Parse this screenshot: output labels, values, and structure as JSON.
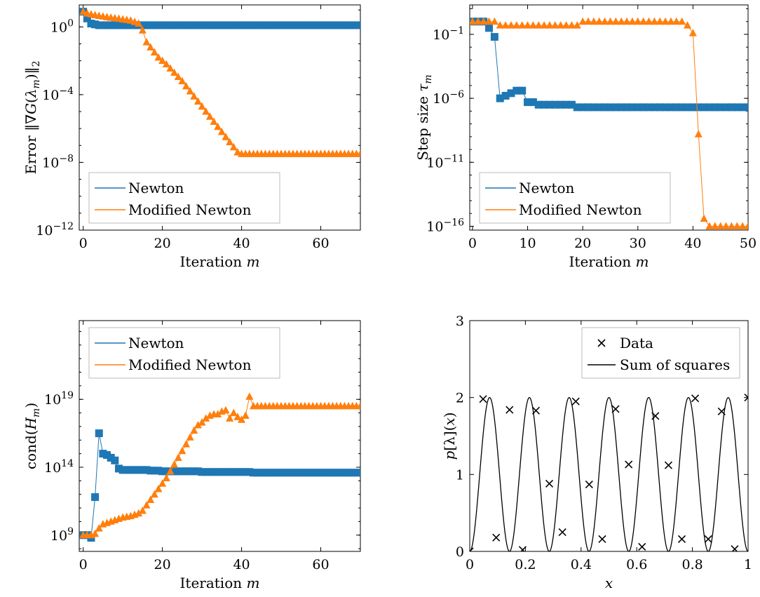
{
  "colors": {
    "newton": "#1f77b4",
    "modified": "#ff7f0e",
    "data": "#000000"
  },
  "chart_data": [
    {
      "id": "error",
      "type": "line",
      "xlabel": "Iteration m",
      "ylabel": "Error ||∇G(λm)||2",
      "xlim": [
        -1,
        70
      ],
      "ylim_log10": [
        -12,
        1.3
      ],
      "yscale": "log",
      "xticks": [
        0,
        20,
        40,
        60
      ],
      "yticks": [
        {
          "exp": -12,
          "label": "10⁻¹²"
        },
        {
          "exp": -8,
          "label": "10⁻⁸"
        },
        {
          "exp": -4,
          "label": "10⁻⁴"
        },
        {
          "exp": 0,
          "label": "10⁰"
        }
      ],
      "legend_position": "bottom-left",
      "series": [
        {
          "name": "Newton",
          "marker": "square",
          "x_start": 0,
          "log10_values": [
            0.9,
            0.5,
            0.2,
            0.15,
            0.1,
            0.1,
            0.1,
            0.1,
            0.1,
            0.1,
            0.1,
            0.1,
            0.1,
            0.1,
            0.1,
            0.1,
            0.1,
            0.1,
            0.1,
            0.1,
            0.1,
            0.1,
            0.1,
            0.1,
            0.1,
            0.1,
            0.1,
            0.1,
            0.1,
            0.1,
            0.1,
            0.1,
            0.1,
            0.1,
            0.1,
            0.1,
            0.1,
            0.1,
            0.1,
            0.1,
            0.1,
            0.1,
            0.1,
            0.1,
            0.1,
            0.1,
            0.1,
            0.1,
            0.1,
            0.1,
            0.1,
            0.1,
            0.1,
            0.1,
            0.1,
            0.1,
            0.1,
            0.1,
            0.1,
            0.1,
            0.1,
            0.1,
            0.1,
            0.1,
            0.1,
            0.1,
            0.1,
            0.1,
            0.1,
            0.1,
            0.1
          ]
        },
        {
          "name": "Modified Newton",
          "marker": "triangle",
          "x_start": 0,
          "log10_values": [
            0.9,
            0.8,
            0.75,
            0.7,
            0.66,
            0.62,
            0.58,
            0.55,
            0.52,
            0.49,
            0.45,
            0.42,
            0.38,
            0.3,
            0.2,
            -0.2,
            -0.9,
            -1.2,
            -1.5,
            -1.8,
            -2.0,
            -2.2,
            -2.45,
            -2.7,
            -2.95,
            -3.2,
            -3.5,
            -3.8,
            -4.1,
            -4.4,
            -4.7,
            -5.0,
            -5.3,
            -5.6,
            -5.9,
            -6.2,
            -6.5,
            -6.8,
            -7.1,
            -7.4,
            -7.5,
            -7.5,
            -7.5,
            -7.5,
            -7.5,
            -7.5,
            -7.5,
            -7.5,
            -7.5,
            -7.5,
            -7.5,
            -7.5,
            -7.5,
            -7.5,
            -7.5,
            -7.5,
            -7.5,
            -7.5,
            -7.5,
            -7.5,
            -7.5,
            -7.5,
            -7.5,
            -7.5,
            -7.5,
            -7.5,
            -7.5,
            -7.5,
            -7.5,
            -7.5,
            -7.5
          ]
        }
      ]
    },
    {
      "id": "step",
      "type": "line",
      "xlabel": "Iteration m",
      "ylabel": "Step size τm",
      "xlim": [
        -0.5,
        50
      ],
      "ylim_log10": [
        -16.3,
        1.3
      ],
      "yscale": "log",
      "xticks": [
        0,
        10,
        20,
        30,
        40,
        50
      ],
      "yticks": [
        {
          "exp": -16,
          "label": "10⁻¹⁶"
        },
        {
          "exp": -11,
          "label": "10⁻¹¹"
        },
        {
          "exp": -6,
          "label": "10⁻⁶"
        },
        {
          "exp": -1,
          "label": "10⁻¹"
        }
      ],
      "legend_position": "bottom-left",
      "series": [
        {
          "name": "Newton",
          "marker": "square",
          "x_start": 0,
          "log10_values": [
            0,
            0,
            0,
            -0.5,
            -1.2,
            -6,
            -5.8,
            -5.6,
            -5.4,
            -5.4,
            -6.3,
            -6.3,
            -6.5,
            -6.5,
            -6.5,
            -6.5,
            -6.5,
            -6.5,
            -6.5,
            -6.7,
            -6.7,
            -6.7,
            -6.7,
            -6.7,
            -6.7,
            -6.7,
            -6.7,
            -6.7,
            -6.7,
            -6.7,
            -6.7,
            -6.7,
            -6.7,
            -6.7,
            -6.7,
            -6.7,
            -6.7,
            -6.7,
            -6.7,
            -6.7,
            -6.7,
            -6.7,
            -6.7,
            -6.7,
            -6.7,
            -6.7,
            -6.7,
            -6.7,
            -6.7,
            -6.7,
            -6.7
          ]
        },
        {
          "name": "Modified Newton",
          "marker": "triangle",
          "x_start": 0,
          "log10_values": [
            0,
            0,
            0,
            0,
            0,
            -0.3,
            -0.3,
            -0.3,
            -0.3,
            -0.3,
            -0.3,
            -0.3,
            -0.3,
            -0.3,
            -0.3,
            -0.3,
            -0.3,
            -0.3,
            -0.3,
            -0.3,
            0,
            0,
            0,
            0,
            0,
            0,
            0,
            0,
            0,
            0,
            0,
            0,
            0,
            0,
            0,
            0,
            0,
            0,
            0,
            -0.3,
            -0.9,
            -8.8,
            -15.4,
            -16,
            -16,
            -16,
            -16,
            -16,
            -16,
            -16,
            -16
          ]
        }
      ]
    },
    {
      "id": "cond",
      "type": "line",
      "xlabel": "Iteration m",
      "ylabel": "cond(Hm)",
      "xlim": [
        -1,
        70
      ],
      "ylim_log10": [
        7.8,
        24.8
      ],
      "yscale": "log",
      "xticks": [
        0,
        20,
        40,
        60
      ],
      "yticks": [
        {
          "exp": 9,
          "label": "10⁹"
        },
        {
          "exp": 14,
          "label": "10¹⁴"
        },
        {
          "exp": 19,
          "label": "10¹⁹"
        }
      ],
      "legend_position": "top-left",
      "series": [
        {
          "name": "Newton",
          "marker": "square",
          "x_start": 0,
          "log10_values": [
            9,
            9,
            8.8,
            11.8,
            16.5,
            15,
            14.9,
            14.7,
            14.5,
            13.9,
            13.8,
            13.8,
            13.8,
            13.8,
            13.8,
            13.8,
            13.8,
            13.75,
            13.75,
            13.75,
            13.7,
            13.7,
            13.7,
            13.7,
            13.7,
            13.7,
            13.7,
            13.7,
            13.7,
            13.7,
            13.65,
            13.65,
            13.65,
            13.65,
            13.65,
            13.65,
            13.65,
            13.65,
            13.65,
            13.65,
            13.65,
            13.65,
            13.65,
            13.6,
            13.6,
            13.6,
            13.6,
            13.6,
            13.6,
            13.6,
            13.6,
            13.6,
            13.6,
            13.6,
            13.6,
            13.6,
            13.6,
            13.6,
            13.6,
            13.6,
            13.6,
            13.6,
            13.6,
            13.6,
            13.6,
            13.6,
            13.6,
            13.6,
            13.6,
            13.6,
            13.6
          ]
        },
        {
          "name": "Modified Newton",
          "marker": "triangle",
          "x_start": 0,
          "log10_values": [
            9,
            9,
            9,
            9.1,
            9.5,
            9.8,
            9.9,
            10,
            10.1,
            10.2,
            10.3,
            10.35,
            10.4,
            10.5,
            10.6,
            10.8,
            11.2,
            11.6,
            12,
            12.4,
            12.8,
            13.2,
            13.7,
            14.2,
            14.7,
            15.2,
            15.7,
            16.2,
            16.7,
            17.1,
            17.3,
            17.6,
            17.8,
            17.9,
            17.9,
            18.1,
            18.2,
            17.6,
            18,
            17.7,
            17.5,
            17.8,
            19.2,
            18.5,
            18.5,
            18.5,
            18.5,
            18.5,
            18.5,
            18.5,
            18.5,
            18.5,
            18.5,
            18.5,
            18.5,
            18.5,
            18.5,
            18.5,
            18.5,
            18.5,
            18.5,
            18.5,
            18.5,
            18.5,
            18.5,
            18.5,
            18.5,
            18.5,
            18.5,
            18.5,
            18.5
          ]
        }
      ]
    },
    {
      "id": "fit",
      "type": "line",
      "xlabel": "x",
      "ylabel": "p[λ](x)",
      "xlim": [
        0,
        1
      ],
      "ylim": [
        0,
        3
      ],
      "yscale": "linear",
      "xticks": [
        0,
        0.2,
        0.4,
        0.6,
        0.8,
        1
      ],
      "xtick_labels": [
        "0",
        "0.2",
        "0.4",
        "0.6",
        "0.8",
        "1"
      ],
      "yticks": [
        {
          "value": 0,
          "label": "0"
        },
        {
          "value": 1,
          "label": "1"
        },
        {
          "value": 2,
          "label": "2"
        },
        {
          "value": 3,
          "label": "3"
        }
      ],
      "legend_position": "top-right",
      "series": [
        {
          "name": "Data",
          "marker": "x",
          "style": "markers",
          "points": [
            [
              0,
              0
            ],
            [
              0.048,
              1.98
            ],
            [
              0.095,
              0.18
            ],
            [
              0.143,
              1.84
            ],
            [
              0.19,
              0.02
            ],
            [
              0.238,
              1.83
            ],
            [
              0.286,
              0.88
            ],
            [
              0.333,
              0.25
            ],
            [
              0.381,
              1.95
            ],
            [
              0.429,
              0.87
            ],
            [
              0.476,
              0.16
            ],
            [
              0.524,
              1.85
            ],
            [
              0.571,
              1.13
            ],
            [
              0.619,
              0.06
            ],
            [
              0.667,
              1.76
            ],
            [
              0.714,
              1.12
            ],
            [
              0.762,
              0.16
            ],
            [
              0.81,
              1.99
            ],
            [
              0.857,
              0.16
            ],
            [
              0.905,
              1.82
            ],
            [
              0.952,
              0.03
            ],
            [
              1,
              2
            ]
          ]
        },
        {
          "name": "Sum of squares",
          "marker": "none",
          "style": "line",
          "formula": "1 - cos(2π · 7 · x)"
        }
      ]
    }
  ]
}
